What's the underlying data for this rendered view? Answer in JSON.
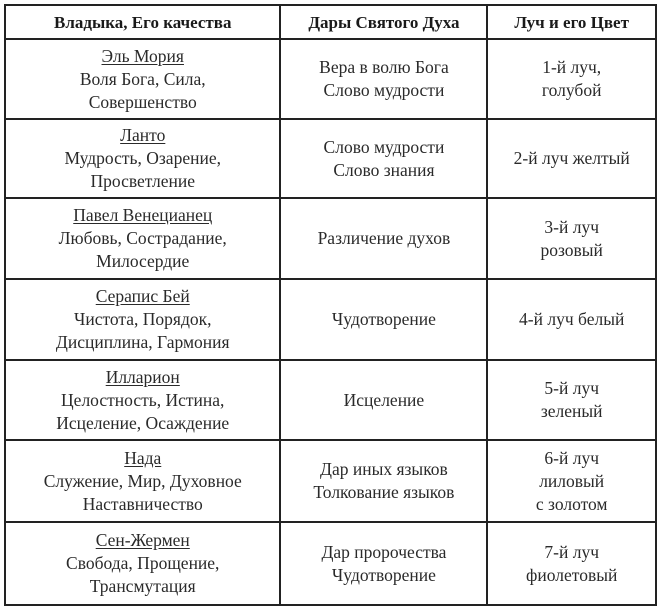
{
  "headers": [
    "Владыка, Его качества",
    "Дары Святого Духа",
    "Луч и его Цвет"
  ],
  "rows": [
    {
      "name": "Эль Мория",
      "qualities": [
        "Воля Бога, Сила,",
        "Совершенство"
      ],
      "gifts": [
        "Вера в волю Бога",
        "Слово мудрости"
      ],
      "ray": [
        "1-й луч,",
        "голубой"
      ]
    },
    {
      "name": "Ланто",
      "qualities": [
        "Мудрость, Озарение,",
        "Просветление"
      ],
      "gifts": [
        "Слово мудрости",
        "Слово знания"
      ],
      "ray": [
        "2-й луч желтый"
      ]
    },
    {
      "name": "Павел Венецианец",
      "qualities": [
        "Любовь, Сострадание,",
        "Милосердие"
      ],
      "gifts": [
        "Различение духов"
      ],
      "ray": [
        "3-й луч",
        "розовый"
      ]
    },
    {
      "name": "Серапис Бей",
      "qualities": [
        "Чистота, Порядок,",
        "Дисциплина, Гармония"
      ],
      "gifts": [
        "Чудотворение"
      ],
      "ray": [
        "4-й луч белый"
      ]
    },
    {
      "name": "Илларион",
      "qualities": [
        "Целостность, Истина,",
        "Исцеление, Осаждение"
      ],
      "gifts": [
        "Исцеление"
      ],
      "ray": [
        "5-й луч",
        "зеленый"
      ]
    },
    {
      "name": "Нада",
      "qualities": [
        "Служение, Мир, Духовное",
        "Наставничество"
      ],
      "gifts": [
        "Дар иных языков",
        "Толкование языков"
      ],
      "ray": [
        "6-й луч",
        "лиловый",
        "с золотом"
      ]
    },
    {
      "name": "Сен-Жермен",
      "qualities": [
        "Свобода, Прощение,",
        "Трансмутация"
      ],
      "gifts": [
        "Дар пророчества",
        "Чудотворение"
      ],
      "ray": [
        "7-й луч",
        "фиолетовый"
      ]
    }
  ]
}
